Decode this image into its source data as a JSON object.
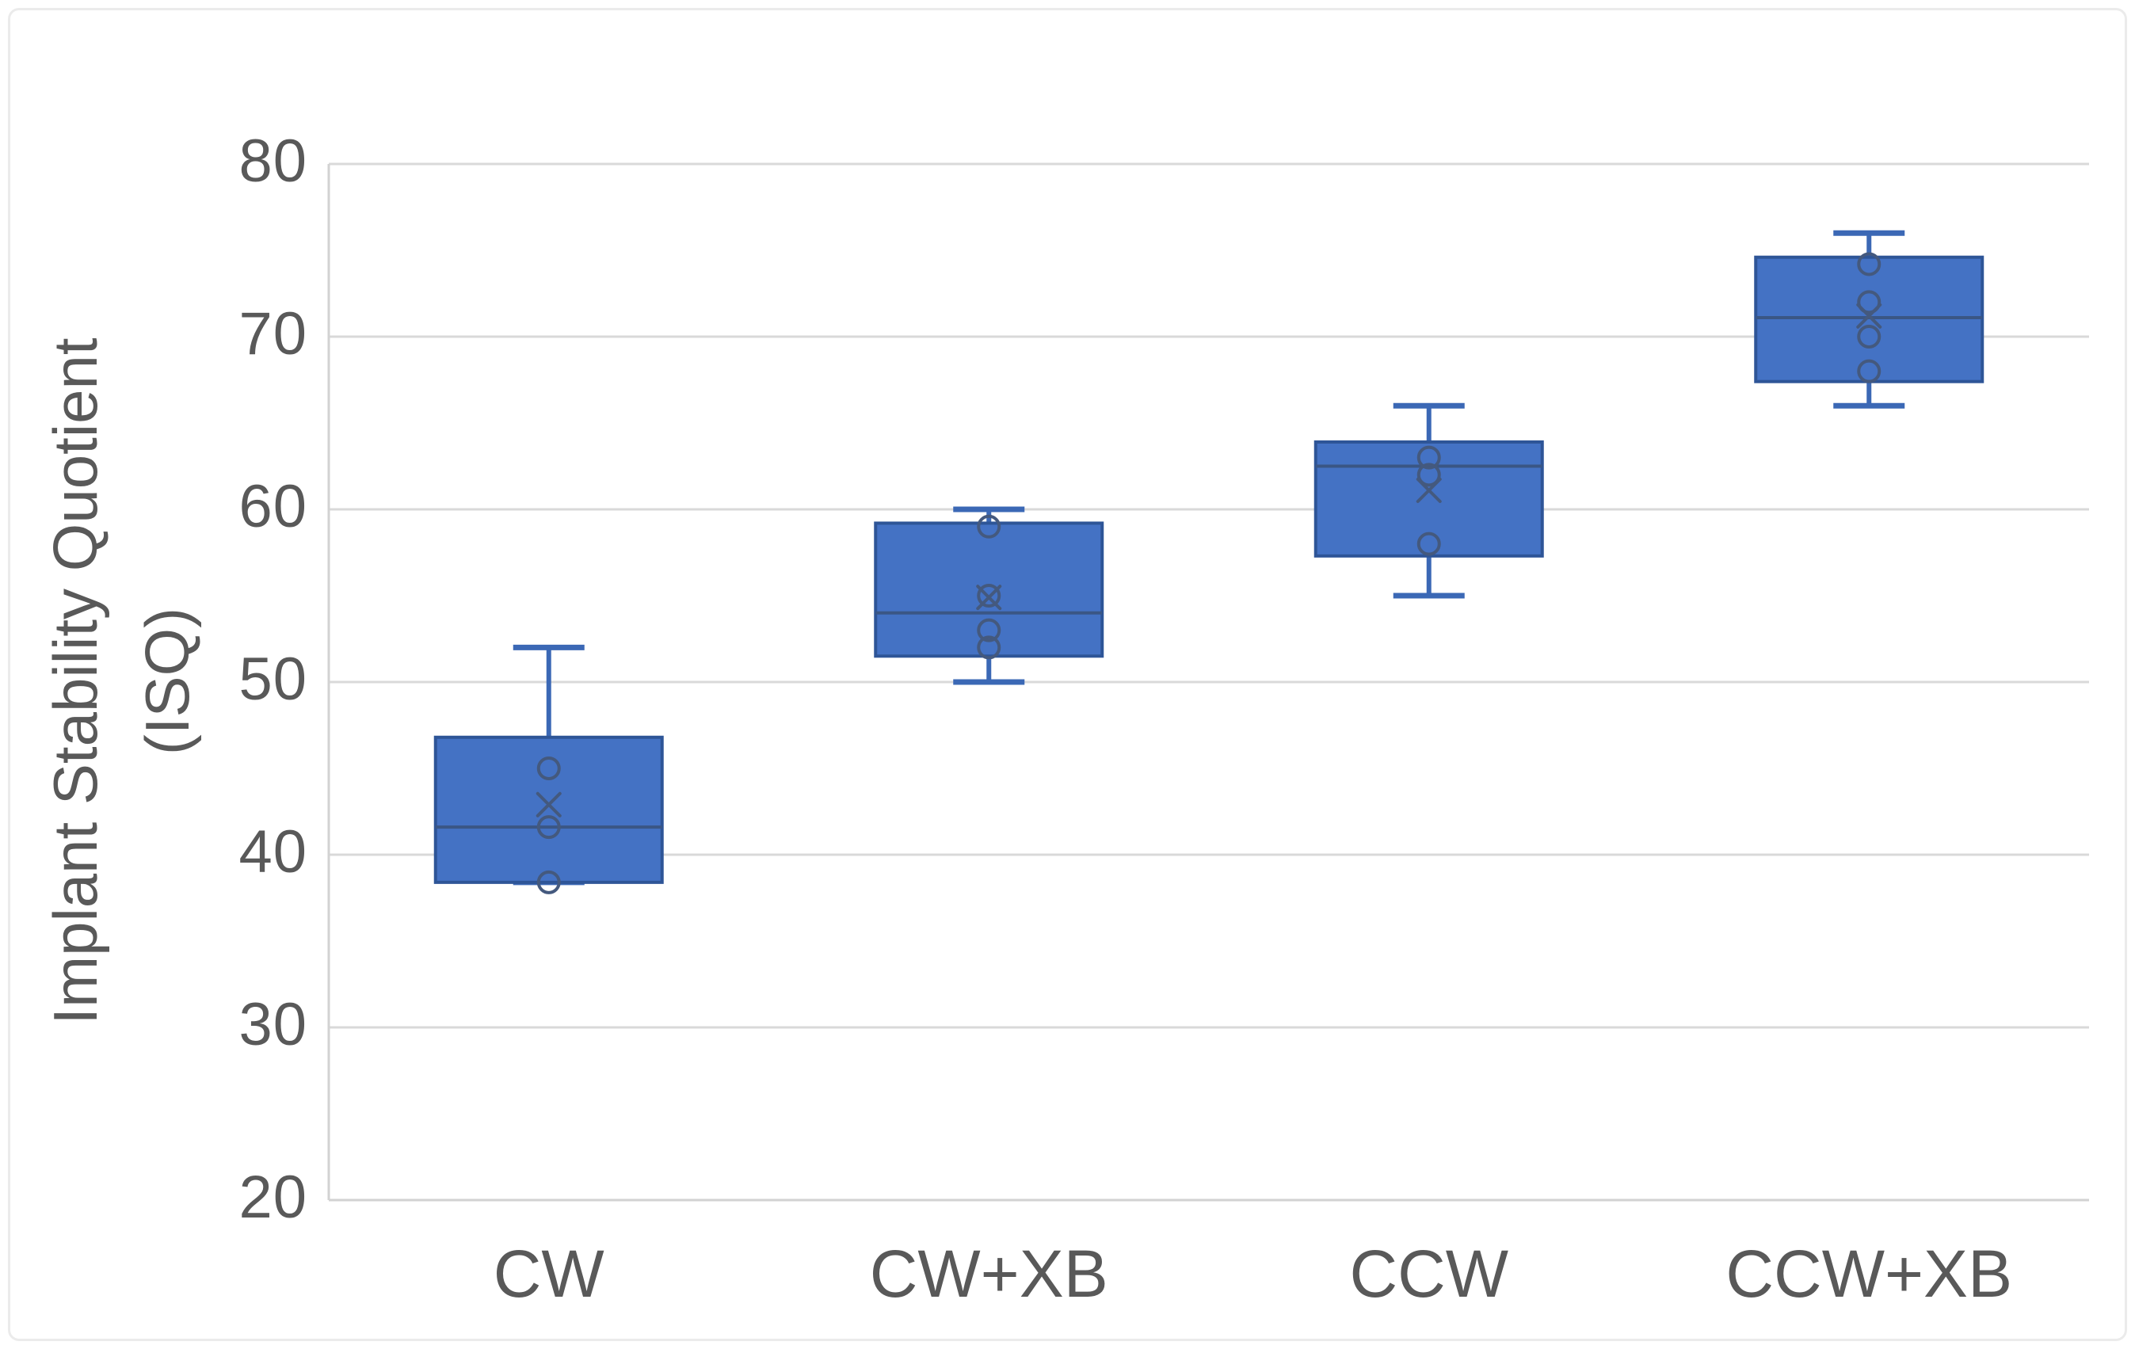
{
  "figure": {
    "background": "#FFFFFF",
    "frame_border_color": "#EBEBEB"
  },
  "chart_data": {
    "type": "box",
    "title": "",
    "categories": [
      "CW",
      "CW+XB",
      "CCW",
      "CCW+XB"
    ],
    "ylabel_lines": [
      "Implant Stability Quotient",
      "(ISQ)"
    ],
    "ylabel": "Implant Stability Quotient (ISQ)",
    "xlabel": "",
    "ylim": [
      20,
      80
    ],
    "yticks": [
      80,
      70,
      60,
      50,
      40,
      30,
      20
    ],
    "grid": true,
    "legend": false,
    "series": [
      {
        "name": "CW",
        "min": 38.4,
        "q1": 38.4,
        "median": 41.6,
        "q3": 46.8,
        "max": 52.0,
        "mean": 42.9,
        "points": [
          45.0,
          41.6,
          38.4
        ]
      },
      {
        "name": "CW+XB",
        "min": 50.0,
        "q1": 51.5,
        "median": 54.0,
        "q3": 59.2,
        "max": 60.0,
        "mean": 54.9,
        "points": [
          59.0,
          55.0,
          53.0,
          52.0
        ]
      },
      {
        "name": "CCW",
        "min": 55.0,
        "q1": 57.3,
        "median": 62.5,
        "q3": 63.9,
        "max": 66.0,
        "mean": 61.1,
        "points": [
          63.0,
          62.0,
          58.0
        ]
      },
      {
        "name": "CCW+XB",
        "min": 66.0,
        "q1": 67.4,
        "median": 71.1,
        "q3": 74.6,
        "max": 76.0,
        "mean": 71.2,
        "points": [
          74.2,
          72.0,
          70.0,
          68.0
        ]
      }
    ],
    "colors": {
      "box_fill": "#4472C4",
      "box_border": "#2E5597",
      "whisker": "#3B68B5",
      "median_line": "#3A5685",
      "marker": "#44597E",
      "gridline": "#D9D9D9",
      "axis_line": "#D2D2D2",
      "text": "#595959"
    }
  }
}
